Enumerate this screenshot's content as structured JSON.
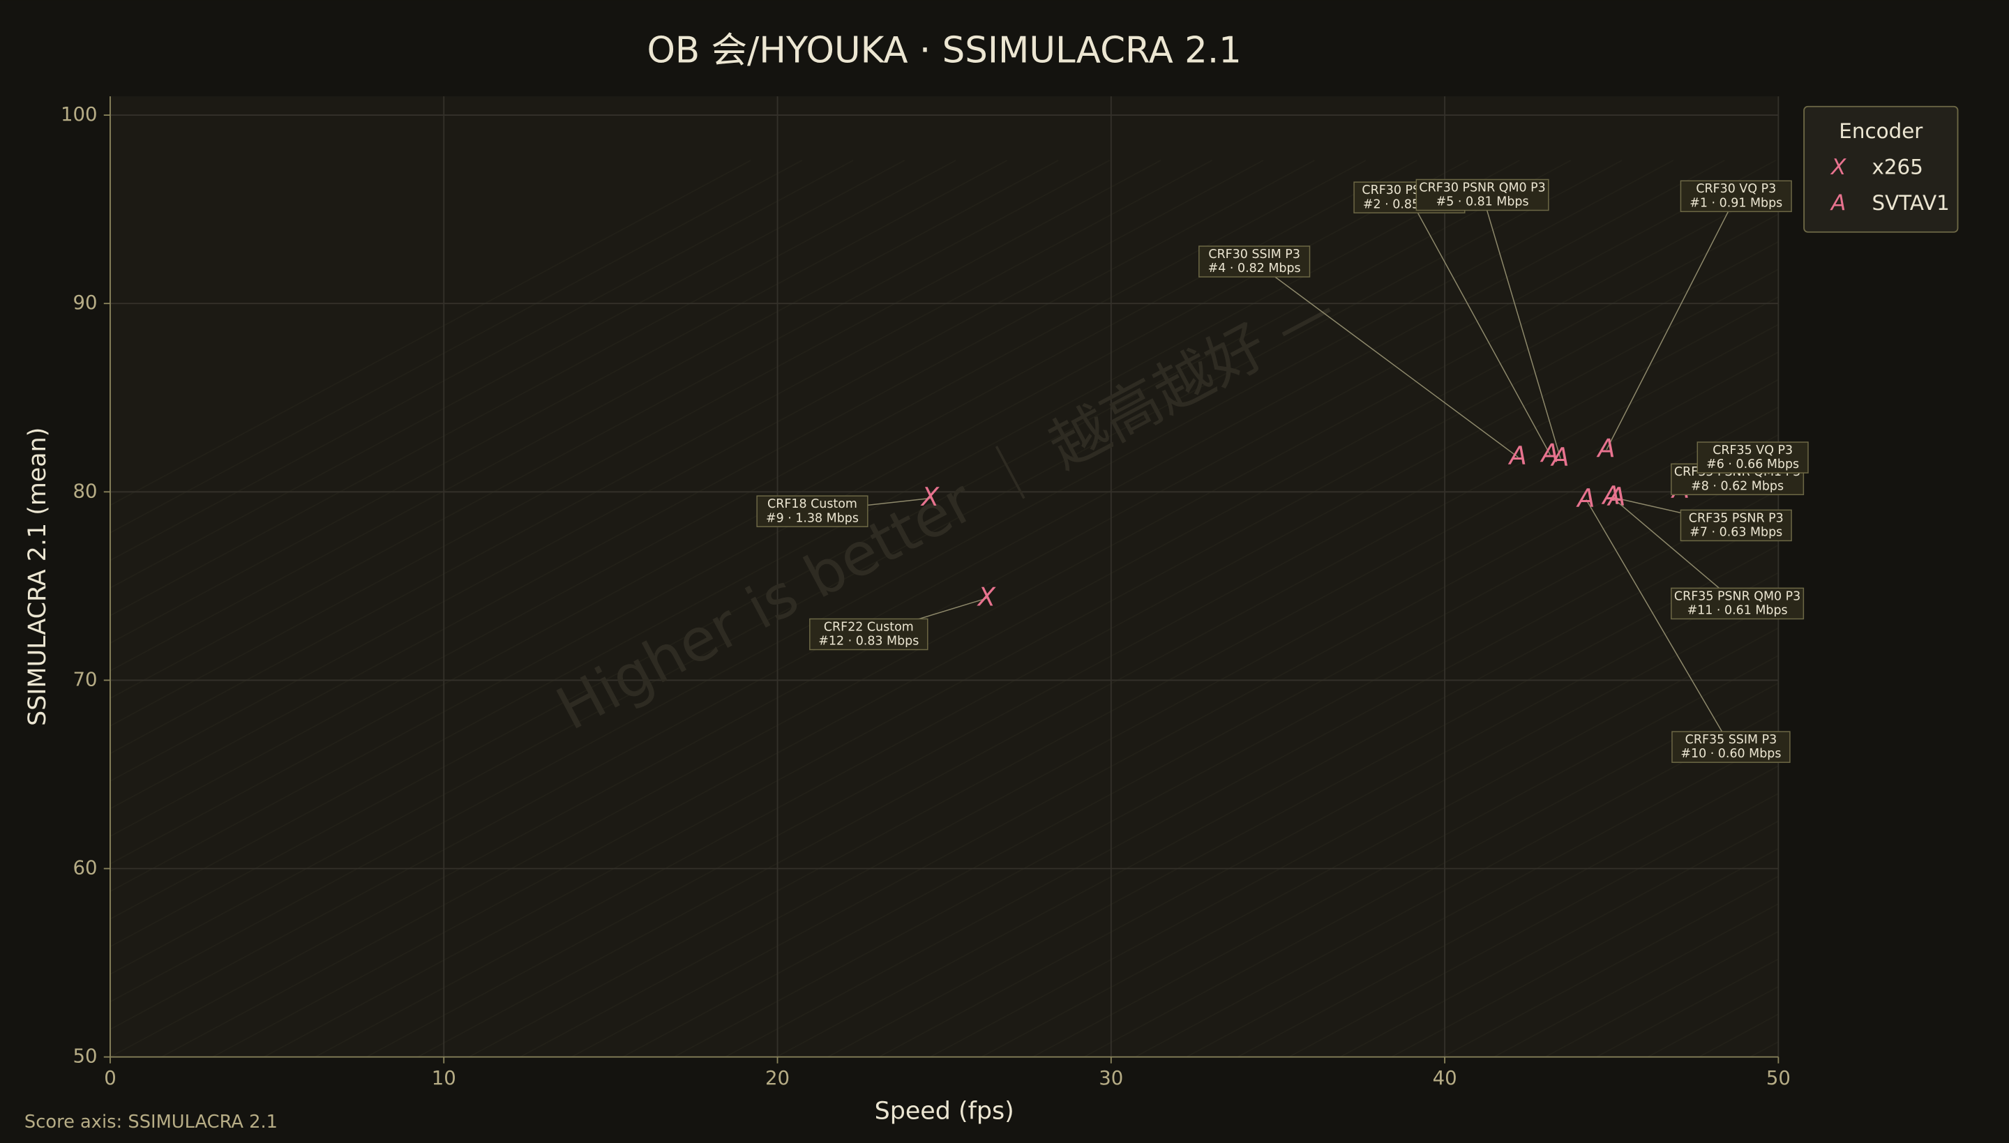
{
  "chart_data": {
    "type": "scatter",
    "title": "OB 会/HYOUKA · SSIMULACRA 2.1",
    "xlabel": "Speed (fps)",
    "ylabel": "SSIMULACRA 2.1 (mean)",
    "watermark": "Higher is better ｜ 越高越好 —",
    "footer": "Score axis: SSIMULACRA 2.1",
    "legend_title": "Encoder",
    "legend": "upper right",
    "grid": true,
    "xlim": [
      0,
      50
    ],
    "ylim": [
      50,
      101
    ],
    "xticks": [
      0,
      10,
      20,
      30,
      40,
      50
    ],
    "yticks": [
      50,
      60,
      70,
      80,
      90,
      100
    ],
    "series": [
      {
        "name": "x265",
        "marker": "X",
        "color": "#e8738f",
        "x": [
          24.58,
          26.27
        ],
        "values": [
          79.66,
          74.35
        ],
        "labels": [
          [
            "CRF18 Custom",
            "#9 · 1.38 Mbps"
          ],
          [
            "CRF22 Custom",
            "#12 · 0.83 Mbps"
          ]
        ]
      },
      {
        "name": "SVTAV1",
        "marker": "A",
        "color": "#e8738f",
        "x": [
          44.85,
          43.16,
          42.2,
          43.47,
          47.08,
          47.4,
          45.16,
          45.0,
          44.24
        ],
        "values": [
          82.24,
          81.97,
          81.84,
          81.77,
          80.07,
          80.27,
          79.66,
          79.73,
          79.59
        ],
        "labels": [
          [
            "CRF30 VQ P3",
            "#1 · 0.91 Mbps"
          ],
          [
            "CRF30 PSNR P3",
            "#2 · 0.85 Mbps"
          ],
          [
            "CRF30 SSIM P3",
            "#4 · 0.82 Mbps"
          ],
          [
            "CRF30 PSNR QM0 P3",
            "#5 · 0.81 Mbps"
          ],
          [
            "CRF35 PSNR QM1 P3",
            "#8 · 0.62 Mbps"
          ],
          [
            "CRF35 VQ P3",
            "#6 · 0.66 Mbps"
          ],
          [
            "CRF35 PSNR P3",
            "#7 · 0.63 Mbps"
          ],
          [
            "CRF35 PSNR QM0 P3",
            "#11 · 0.61 Mbps"
          ],
          [
            "CRF35 SSIM P3",
            "#10 · 0.60 Mbps"
          ]
        ]
      }
    ]
  }
}
